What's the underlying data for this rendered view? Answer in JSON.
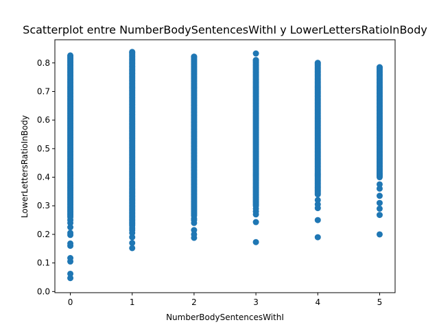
{
  "chart_data": {
    "type": "scatter",
    "title": "Scatterplot entre NumberBodySentencesWithI y LowerLettersRatioInBody",
    "xlabel": "NumberBodySentencesWithI",
    "ylabel": "LowerLettersRatioInBody",
    "xlim": [
      -0.25,
      5.25
    ],
    "ylim": [
      -0.004,
      0.881
    ],
    "x_ticks": [
      0,
      1,
      2,
      3,
      4,
      5
    ],
    "y_ticks": [
      0.0,
      0.1,
      0.2,
      0.3,
      0.4,
      0.5,
      0.6,
      0.7,
      0.8
    ],
    "x_tick_labels": [
      "0",
      "1",
      "2",
      "3",
      "4",
      "5"
    ],
    "y_tick_labels": [
      "0.0",
      "0.1",
      "0.2",
      "0.3",
      "0.4",
      "0.5",
      "0.6",
      "0.7",
      "0.8"
    ],
    "grid": false,
    "marker_color": "#1f77b4",
    "series": [
      {
        "x": 0,
        "dense_range": [
          0.26,
          0.826
        ],
        "outliers": [
          0.047,
          0.062,
          0.105,
          0.117,
          0.16,
          0.168,
          0.198,
          0.205,
          0.225,
          0.24,
          0.25
        ]
      },
      {
        "x": 1,
        "dense_range": [
          0.23,
          0.838
        ],
        "outliers": [
          0.152,
          0.17,
          0.19,
          0.205,
          0.215,
          0.222
        ]
      },
      {
        "x": 2,
        "dense_range": [
          0.265,
          0.822
        ],
        "outliers": [
          0.188,
          0.2,
          0.215,
          0.24,
          0.25,
          0.255
        ]
      },
      {
        "x": 3,
        "dense_range": [
          0.3,
          0.81
        ],
        "outliers": [
          0.173,
          0.243,
          0.27,
          0.28,
          0.29,
          0.833
        ]
      },
      {
        "x": 4,
        "dense_range": [
          0.34,
          0.8
        ],
        "outliers": [
          0.19,
          0.25,
          0.292,
          0.305,
          0.32
        ]
      },
      {
        "x": 5,
        "dense_range": [
          0.4,
          0.785
        ],
        "outliers": [
          0.2,
          0.268,
          0.29,
          0.31,
          0.335,
          0.36,
          0.375
        ]
      }
    ]
  }
}
